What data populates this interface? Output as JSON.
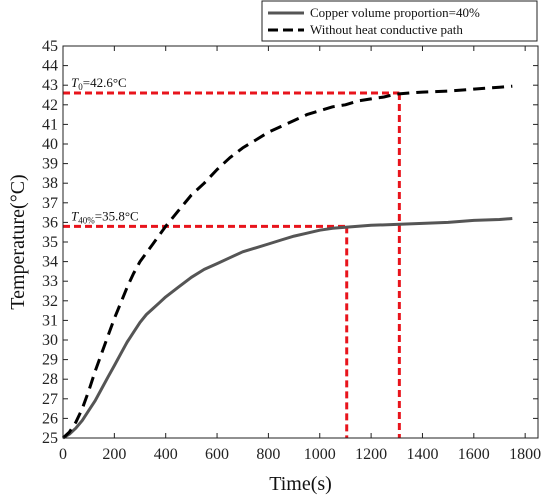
{
  "chart_data": {
    "type": "line",
    "title": "",
    "xlabel": "Time(s)",
    "ylabel": "Temperature(°C)",
    "xlim": [
      0,
      1850
    ],
    "ylim": [
      25,
      45
    ],
    "x_ticks": [
      0,
      200,
      400,
      600,
      800,
      1000,
      1200,
      1400,
      1600,
      1800
    ],
    "y_ticks": [
      25,
      26,
      27,
      28,
      29,
      30,
      31,
      32,
      33,
      34,
      35,
      36,
      37,
      38,
      39,
      40,
      41,
      42,
      43,
      44,
      45
    ],
    "grid": false,
    "legend_position": "top-right",
    "colors": {
      "copper": "#555555",
      "no_path": "#000000",
      "reference": "#e8141c"
    },
    "series": [
      {
        "name": "Copper volume proportion=40%",
        "style": "solid",
        "x": [
          0,
          25,
          50,
          75,
          100,
          125,
          150,
          175,
          200,
          225,
          250,
          275,
          300,
          325,
          350,
          375,
          400,
          450,
          500,
          550,
          600,
          650,
          700,
          750,
          800,
          850,
          900,
          950,
          1000,
          1050,
          1100,
          1150,
          1200,
          1300,
          1400,
          1500,
          1600,
          1700,
          1750
        ],
        "values": [
          25.0,
          25.2,
          25.5,
          25.9,
          26.4,
          26.9,
          27.5,
          28.1,
          28.7,
          29.3,
          29.9,
          30.4,
          30.9,
          31.3,
          31.6,
          31.9,
          32.2,
          32.7,
          33.2,
          33.6,
          33.9,
          34.2,
          34.5,
          34.7,
          34.9,
          35.1,
          35.3,
          35.45,
          35.6,
          35.7,
          35.75,
          35.8,
          35.85,
          35.9,
          35.95,
          36.0,
          36.1,
          36.15,
          36.2
        ]
      },
      {
        "name": "Without heat conductive path",
        "style": "dashed",
        "x": [
          0,
          25,
          50,
          75,
          100,
          125,
          150,
          175,
          200,
          225,
          250,
          275,
          300,
          350,
          400,
          450,
          500,
          550,
          600,
          650,
          700,
          750,
          800,
          850,
          900,
          950,
          1000,
          1050,
          1100,
          1150,
          1200,
          1250,
          1300,
          1350,
          1400,
          1500,
          1600,
          1700,
          1750
        ],
        "values": [
          25.0,
          25.3,
          25.8,
          26.5,
          27.4,
          28.4,
          29.3,
          30.2,
          31.1,
          31.9,
          32.7,
          33.4,
          34.0,
          34.9,
          35.8,
          36.6,
          37.4,
          38.0,
          38.7,
          39.3,
          39.8,
          40.2,
          40.6,
          40.9,
          41.2,
          41.5,
          41.7,
          41.9,
          42.0,
          42.2,
          42.3,
          42.4,
          42.55,
          42.6,
          42.65,
          42.7,
          42.8,
          42.9,
          42.95
        ]
      }
    ],
    "reference_lines": [
      {
        "label_var": "T",
        "label_sub": "0",
        "label_value": "=42.6°C",
        "y": 42.6,
        "x": 1310
      },
      {
        "label_var": "T",
        "label_sub": "40%",
        "label_value": "=35.8°C",
        "y": 35.8,
        "x": 1105
      }
    ]
  }
}
